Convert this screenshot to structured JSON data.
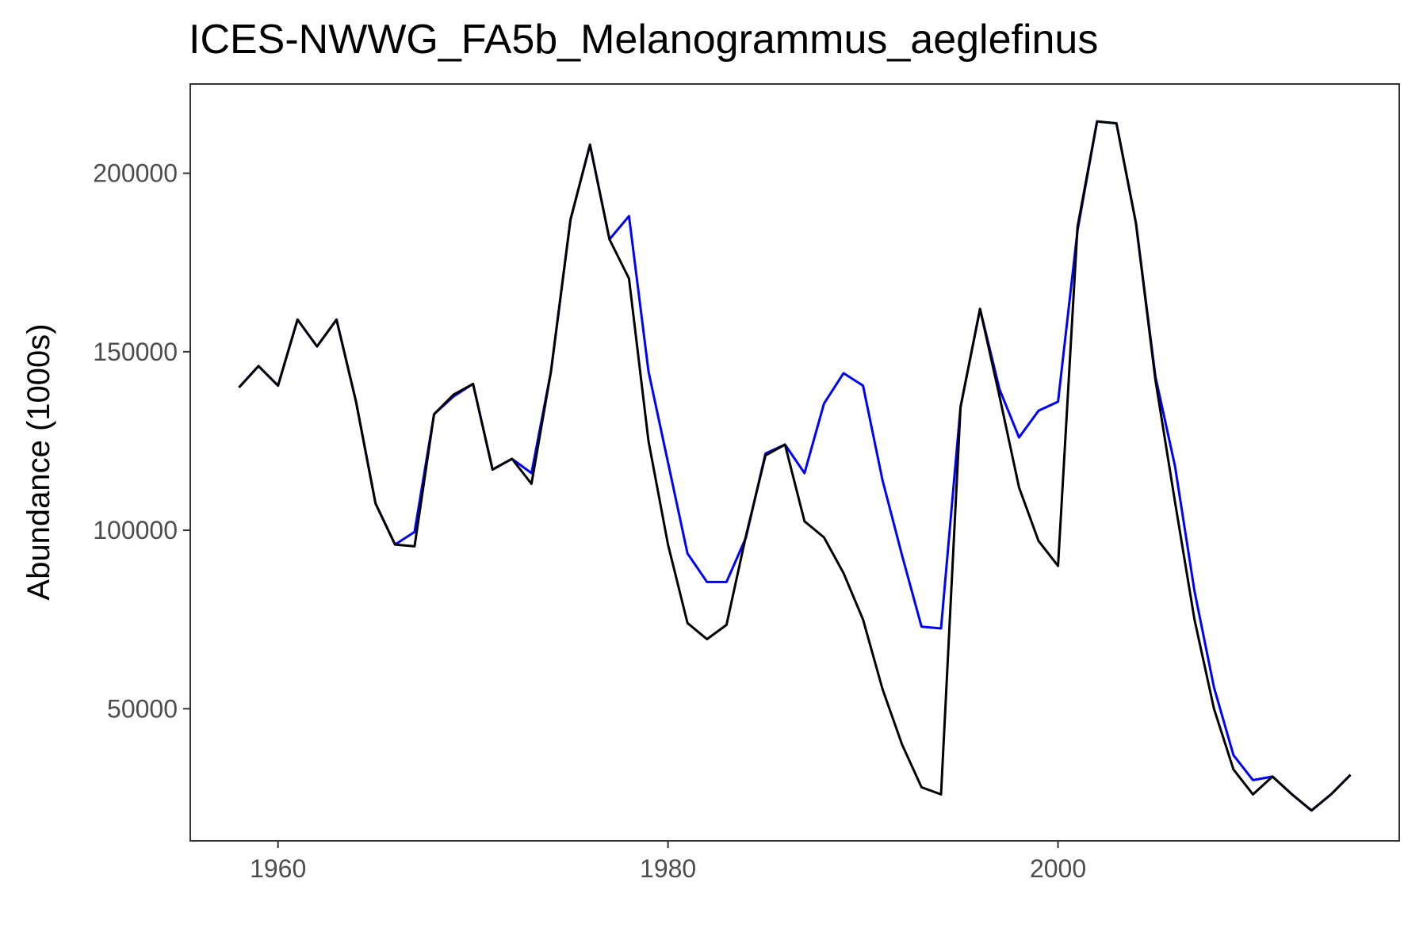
{
  "chart_data": {
    "type": "line",
    "title": "ICES-NWWG_FA5b_Melanogrammus_aeglefinus",
    "xlabel": "",
    "ylabel": "Abundance (1000s)",
    "xlim": [
      1955.5,
      2017.5
    ],
    "ylim": [
      13000,
      225000
    ],
    "x_ticks": [
      1960,
      1980,
      2000
    ],
    "y_ticks": [
      50000,
      100000,
      150000,
      200000
    ],
    "grid": false,
    "legend": "none",
    "x": [
      1958,
      1959,
      1960,
      1961,
      1962,
      1963,
      1964,
      1965,
      1966,
      1967,
      1968,
      1969,
      1970,
      1971,
      1972,
      1973,
      1974,
      1975,
      1976,
      1977,
      1978,
      1979,
      1980,
      1981,
      1982,
      1983,
      1984,
      1985,
      1986,
      1987,
      1988,
      1989,
      1990,
      1991,
      1992,
      1993,
      1994,
      1995,
      1996,
      1997,
      1998,
      1999,
      2000,
      2001,
      2002,
      2003,
      2004,
      2005,
      2006,
      2007,
      2008,
      2009,
      2010,
      2011,
      2012,
      2013,
      2014,
      2015
    ],
    "series": [
      {
        "color": "#0000ff",
        "values": [
          140000,
          146000,
          140500,
          159000,
          151500,
          159000,
          136000,
          107500,
          96000,
          99500,
          132500,
          137500,
          141000,
          117000,
          120000,
          116000,
          144500,
          187000,
          208000,
          181500,
          188000,
          144500,
          119000,
          93500,
          85500,
          85500,
          98000,
          121500,
          124000,
          116000,
          135500,
          144000,
          140500,
          114000,
          93000,
          73000,
          72500,
          134500,
          162000,
          139500,
          126000,
          133500,
          136000,
          184000,
          214500,
          214000,
          186000,
          143000,
          118000,
          83000,
          56000,
          37000,
          30000,
          31000,
          26000,
          21500,
          26000,
          31500
        ]
      },
      {
        "color": "#000000",
        "values": [
          140000,
          146000,
          140500,
          159000,
          151500,
          159000,
          136000,
          107500,
          96000,
          95500,
          132500,
          138000,
          141000,
          117000,
          120000,
          113000,
          144500,
          187000,
          208000,
          181500,
          170500,
          125000,
          96000,
          74000,
          69500,
          73500,
          98500,
          121000,
          124000,
          102500,
          98000,
          88000,
          75000,
          55500,
          40000,
          28000,
          26000,
          134500,
          162000,
          137500,
          112000,
          97000,
          90000,
          185000,
          214500,
          214000,
          186000,
          142000,
          108000,
          75000,
          50000,
          33000,
          26000,
          31000,
          26000,
          21500,
          26000,
          31500
        ]
      }
    ]
  }
}
